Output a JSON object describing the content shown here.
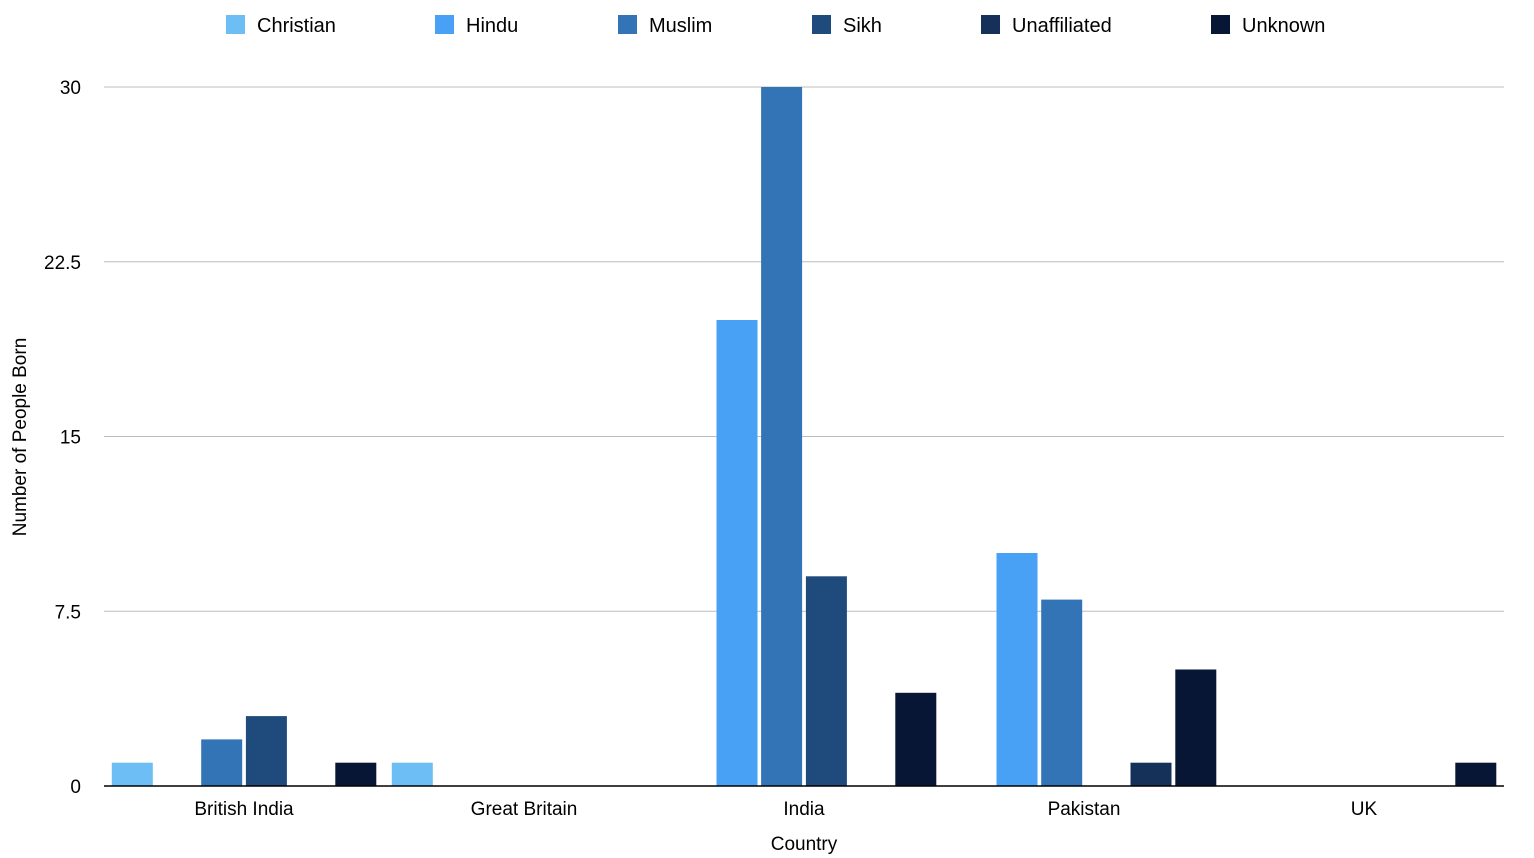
{
  "chart_data": {
    "type": "bar",
    "title": "",
    "xlabel": "Country",
    "ylabel": "Number of People Born",
    "ylim": [
      0,
      30
    ],
    "yticks": [
      "0",
      "7.5",
      "15",
      "22.5",
      "30"
    ],
    "grid": true,
    "legend_position": "top",
    "categories": [
      "British India",
      "Great Britain",
      "India",
      "Pakistan",
      "UK"
    ],
    "series": [
      {
        "name": "Christian",
        "color": "#6CBEF5",
        "values": [
          1,
          1,
          0,
          0,
          0
        ]
      },
      {
        "name": "Hindu",
        "color": "#48A1F5",
        "values": [
          0,
          0,
          20,
          10,
          0
        ]
      },
      {
        "name": "Muslim",
        "color": "#3374B6",
        "values": [
          2,
          0,
          30,
          8,
          0
        ]
      },
      {
        "name": "Sikh",
        "color": "#1F4A7C",
        "values": [
          3,
          0,
          9,
          0,
          0
        ]
      },
      {
        "name": "Unaffiliated",
        "color": "#153159",
        "values": [
          0,
          0,
          0,
          1,
          0
        ]
      },
      {
        "name": "Unknown",
        "color": "#061634",
        "values": [
          1,
          0,
          4,
          5,
          1
        ]
      }
    ]
  }
}
